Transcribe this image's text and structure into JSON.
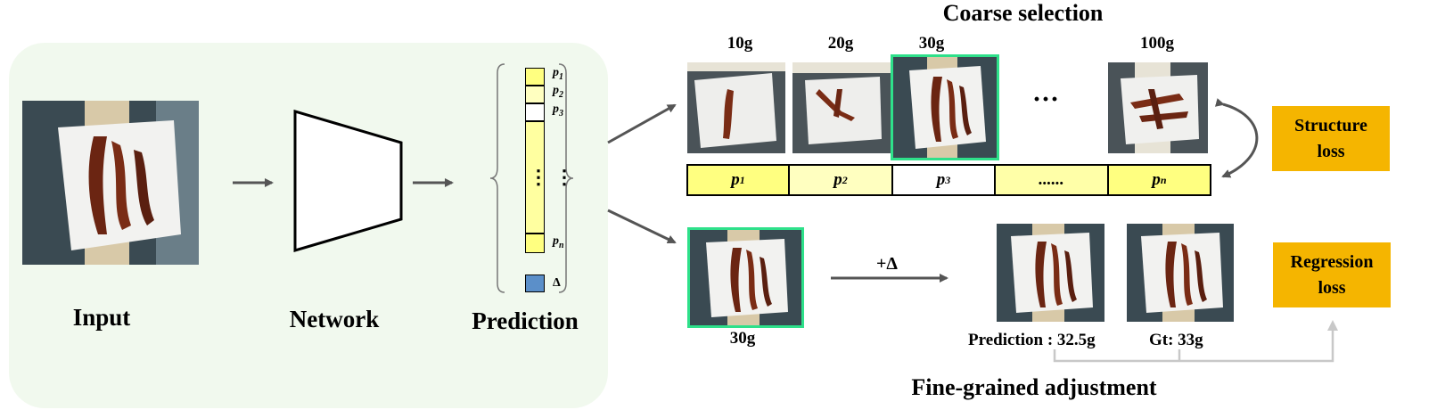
{
  "stages": {
    "input": "Input",
    "network": "Network",
    "prediction": "Prediction"
  },
  "prediction_vector": {
    "labels": [
      "p",
      "p",
      "p",
      "p"
    ],
    "subscripts": [
      "1",
      "2",
      "3",
      "n"
    ],
    "delta": "Δ",
    "ellipsis": "⋮"
  },
  "coarse": {
    "title": "Coarse selection",
    "weights": [
      "10g",
      "20g",
      "30g",
      "100g"
    ],
    "dots": "···",
    "bar_labels": [
      "p",
      "p",
      "p",
      "......",
      "p"
    ],
    "bar_subscripts": [
      "1",
      "2",
      "3",
      "",
      "n"
    ]
  },
  "fine": {
    "title": "Fine-grained adjustment",
    "selected_weight": "30g",
    "delta_op": "+Δ",
    "prediction_caption": "Prediction : 32.5g",
    "gt_caption": "Gt: 33g"
  },
  "losses": {
    "structure": "Structure loss",
    "regression": "Regression loss"
  },
  "colors": {
    "panel_bg": "#f1f9ee",
    "yellow_strong": "#ffff80",
    "yellow_light": "#ffffc0",
    "highlight_green": "#2ee08a",
    "loss_orange": "#f5b500",
    "delta_blue": "#5b8fc9",
    "arrow_gray": "#555555"
  }
}
